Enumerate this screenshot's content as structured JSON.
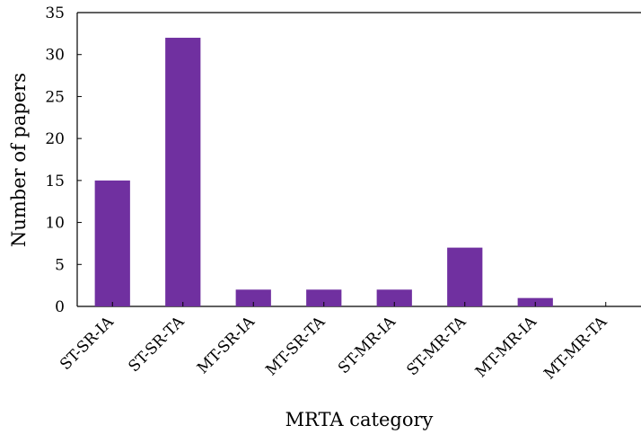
{
  "chart_data": {
    "type": "bar",
    "xlabel": "MRTA category",
    "ylabel": "Number of papers",
    "categories": [
      "ST-SR-IA",
      "ST-SR-TA",
      "MT-SR-IA",
      "MT-SR-TA",
      "ST-MR-IA",
      "ST-MR-TA",
      "MT-MR-IA",
      "MT-MR-TA"
    ],
    "values": [
      15,
      32,
      2,
      2,
      2,
      7,
      1,
      0
    ],
    "ylim": [
      0,
      35
    ],
    "yticks": [
      "0",
      "5",
      "10",
      "15",
      "20",
      "25",
      "30",
      "35"
    ],
    "bar_color": "#7030a0",
    "grid": false
  }
}
